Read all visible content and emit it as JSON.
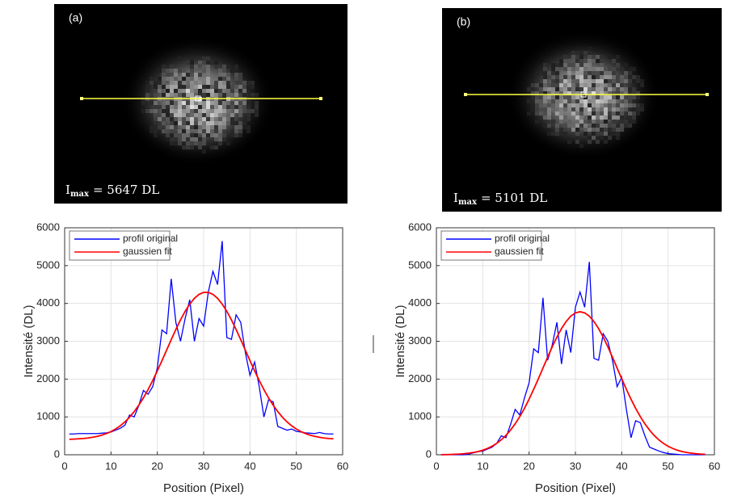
{
  "chart_data": [
    {
      "type": "line",
      "image": {
        "label": "(a)",
        "symbol": "I",
        "subscript": "max",
        "text": "= 5647 DL"
      },
      "xlabel": "Position (Pixel)",
      "ylabel": "Intensité (DL)",
      "x": [
        1,
        2,
        3,
        4,
        5,
        6,
        7,
        8,
        9,
        10,
        11,
        12,
        13,
        14,
        15,
        16,
        17,
        18,
        19,
        20,
        21,
        22,
        23,
        24,
        25,
        26,
        27,
        28,
        29,
        30,
        31,
        32,
        33,
        34,
        35,
        36,
        37,
        38,
        39,
        40,
        41,
        42,
        43,
        44,
        45,
        46,
        47,
        48,
        49,
        50,
        51,
        52,
        53,
        54,
        55,
        56,
        57,
        58
      ],
      "series": [
        {
          "name": "profil original",
          "color": "#0000ff",
          "values": [
            550,
            550,
            560,
            560,
            560,
            560,
            560,
            570,
            580,
            600,
            650,
            700,
            780,
            1050,
            1000,
            1300,
            1700,
            1600,
            1800,
            2300,
            3300,
            3200,
            4650,
            3500,
            3000,
            3600,
            4100,
            3000,
            3600,
            3400,
            4300,
            4850,
            4500,
            5650,
            3100,
            3050,
            3700,
            3500,
            2700,
            2100,
            2450,
            1800,
            1000,
            1450,
            1400,
            750,
            700,
            650,
            680,
            620,
            600,
            580,
            570,
            560,
            590,
            560,
            550,
            550
          ]
        },
        {
          "name": "gaussien fit",
          "color": "#ff0000",
          "values": [
            409,
            414,
            421,
            430,
            443,
            461,
            485,
            518,
            559,
            613,
            681,
            765,
            868,
            993,
            1140,
            1310,
            1505,
            1723,
            1962,
            2219,
            2488,
            2766,
            3043,
            3312,
            3564,
            3791,
            3983,
            4136,
            4240,
            4293,
            4293,
            4240,
            4136,
            3983,
            3791,
            3564,
            3312,
            3043,
            2766,
            2488,
            2219,
            1962,
            1723,
            1505,
            1310,
            1140,
            993,
            868,
            765,
            681,
            613,
            559,
            518,
            485,
            461,
            443,
            430,
            421
          ]
        }
      ],
      "xlim": [
        0,
        60
      ],
      "xticks": [
        0,
        10,
        20,
        30,
        40,
        50,
        60
      ],
      "ylim": [
        0,
        6000
      ],
      "yticks": [
        0,
        1000,
        2000,
        3000,
        4000,
        5000,
        6000
      ],
      "grid": true,
      "legend": "upper left"
    },
    {
      "type": "line",
      "image": {
        "label": "(b)",
        "symbol": "I",
        "subscript": "max",
        "text": "= 5101 DL"
      },
      "xlabel": "Position (Pixel)",
      "ylabel": "Intensité (DL)",
      "x": [
        1,
        2,
        3,
        4,
        5,
        6,
        7,
        8,
        9,
        10,
        11,
        12,
        13,
        14,
        15,
        16,
        17,
        18,
        19,
        20,
        21,
        22,
        23,
        24,
        25,
        26,
        27,
        28,
        29,
        30,
        31,
        32,
        33,
        34,
        35,
        36,
        37,
        38,
        39,
        40,
        41,
        42,
        43,
        44,
        45,
        46,
        47,
        48,
        49,
        50,
        51,
        52,
        53,
        54,
        55,
        56,
        57,
        58
      ],
      "series": [
        {
          "name": "profil original",
          "color": "#0000ff",
          "values": [
            0,
            0,
            0,
            0,
            0,
            0,
            20,
            50,
            80,
            100,
            150,
            200,
            300,
            500,
            450,
            800,
            1200,
            1050,
            1500,
            1900,
            2800,
            2700,
            4150,
            2500,
            2900,
            3500,
            2400,
            3300,
            2700,
            3900,
            4300,
            3900,
            5100,
            2550,
            2500,
            3200,
            3000,
            2500,
            1800,
            2050,
            1200,
            450,
            900,
            850,
            500,
            200,
            150,
            100,
            60,
            30,
            20,
            10,
            0,
            0,
            0,
            0,
            0,
            0
          ]
        },
        {
          "name": "gaussien fit",
          "color": "#ff0000",
          "values": [
            3,
            5,
            8,
            13,
            19,
            29,
            42,
            61,
            86,
            121,
            166,
            225,
            301,
            395,
            511,
            652,
            818,
            1010,
            1227,
            1469,
            1731,
            2007,
            2293,
            2578,
            2853,
            3110,
            3336,
            3523,
            3664,
            3751,
            3780,
            3751,
            3664,
            3523,
            3336,
            3110,
            2853,
            2578,
            2293,
            2007,
            1731,
            1469,
            1227,
            1010,
            818,
            652,
            511,
            395,
            301,
            225,
            166,
            121,
            86,
            61,
            42,
            29,
            19,
            13
          ]
        }
      ],
      "xlim": [
        0,
        60
      ],
      "xticks": [
        0,
        10,
        20,
        30,
        40,
        50,
        60
      ],
      "ylim": [
        0,
        6000
      ],
      "yticks": [
        0,
        1000,
        2000,
        3000,
        4000,
        5000,
        6000
      ],
      "grid": true,
      "legend": "upper left"
    }
  ]
}
